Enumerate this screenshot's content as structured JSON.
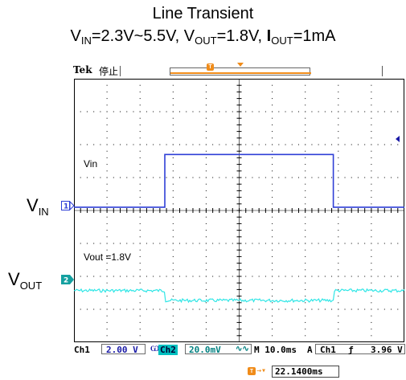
{
  "title": {
    "line1": "Line Transient",
    "vin_sym": "V",
    "vin_sub": "IN",
    "vin_range": "=2.3V~5.5V, ",
    "vout_sym": "V",
    "vout_sub": "OUT",
    "vout_val": "=1.8V, ",
    "iout_sym": "I",
    "iout_sub": "OUT",
    "iout_val": "=1mA"
  },
  "scope": {
    "brand": "Tek",
    "run_state": "停止",
    "trigger_marker": "T"
  },
  "trace_labels": {
    "ch1": "Vin",
    "ch2": "Vout =1.8V"
  },
  "side_labels": {
    "vin_sym": "V",
    "vin_sub": "IN",
    "vout_sym": "V",
    "vout_sub": "OUT",
    "ch1_num": "1",
    "ch2_num": "2"
  },
  "status": {
    "ch1_label": "Ch1",
    "ch1_scale": "2.00 V",
    "ch1_bw": "Ѡ",
    "ch2_label": "Ch2",
    "ch2_scale": "20.0mV",
    "ch2_bw": "∿∿",
    "timebase": "M 10.0ms",
    "acq": "A",
    "trig_ch": "Ch1",
    "trig_edge": "ƒ",
    "trig_level": "3.96 V"
  },
  "trigger_position": {
    "value": "22.1400ms"
  },
  "colors": {
    "ch1": "#2f3fd6",
    "ch2": "#2fe6e6",
    "trigger": "#f08c1a",
    "grid": "#000000"
  },
  "chart_data": {
    "type": "line",
    "xlabel": "",
    "ylabel": "",
    "time_per_div_ms": 10,
    "divisions_x": 10,
    "divisions_y": 8,
    "series": [
      {
        "name": "Vin",
        "channel": "Ch1",
        "volts_per_div": 2.0,
        "x_ms": [
          0,
          27.5,
          27.5,
          78.5,
          78.5,
          100
        ],
        "y_v": [
          2.3,
          2.3,
          5.5,
          5.5,
          2.3,
          2.3
        ]
      },
      {
        "name": "Vout =1.8V",
        "channel": "Ch2",
        "volts_per_div": 0.02,
        "x_ms": [
          0,
          27.5,
          27.5,
          78.5,
          78.5,
          100
        ],
        "y_ac_mv": [
          3,
          3,
          -3,
          -3,
          3,
          3
        ]
      }
    ]
  }
}
